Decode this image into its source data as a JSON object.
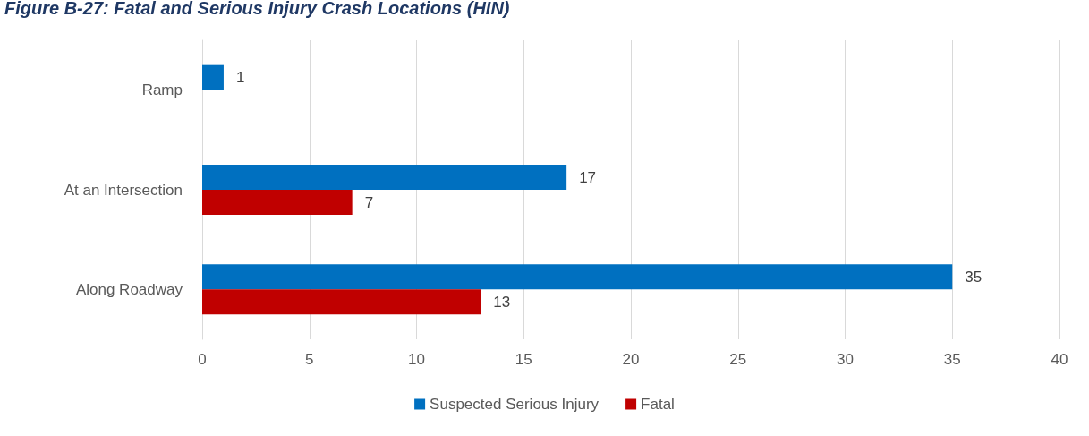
{
  "chart_data": {
    "type": "bar",
    "orientation": "horizontal",
    "title": "Figure B-27: Fatal and Serious Injury Crash Locations (HIN)",
    "categories": [
      "Ramp",
      "At an Intersection",
      "Along Roadway"
    ],
    "series": [
      {
        "name": "Suspected Serious Injury",
        "color": "#0070c0",
        "values": [
          1,
          17,
          35
        ]
      },
      {
        "name": "Fatal",
        "color": "#c00000",
        "values": [
          null,
          7,
          13
        ]
      }
    ],
    "xlim": [
      0,
      40
    ],
    "xticks": [
      0,
      5,
      10,
      15,
      20,
      25,
      30,
      35,
      40
    ],
    "grid": "x",
    "legend": "bottom",
    "data_labels": true
  }
}
